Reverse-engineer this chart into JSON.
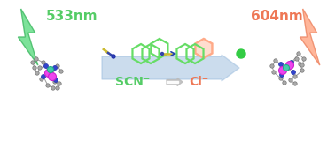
{
  "title": "",
  "bg_color": "#ffffff",
  "green_lightning_color": "#66dd88",
  "green_lightning_edge": "#44bb66",
  "orange_lightning_color": "#ffaa88",
  "orange_lightning_edge": "#ee8866",
  "green_text_color": "#55cc66",
  "orange_text_color": "#ee7755",
  "arrow_color": "#99bbdd",
  "double_arrow_color": "#bbbbbb",
  "scn_color": "#55cc66",
  "cl_color": "#ee7755",
  "phen_green": "#66dd66",
  "phen_orange": "#ffaa88",
  "dot_color": "#33cc44",
  "needle_tip": "#2244aa",
  "label_533": "533nm",
  "label_604": "604nm",
  "label_scn": "SCN⁻",
  "label_cl": "Cl⁻"
}
